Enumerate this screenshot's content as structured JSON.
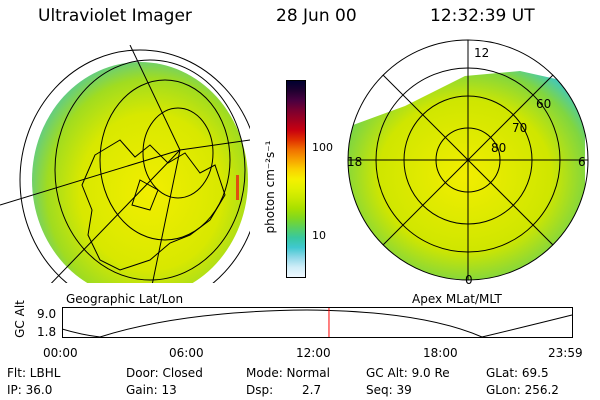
{
  "header": {
    "title": "Ultraviolet Imager",
    "date": "28 Jun 00",
    "time": "12:32:39 UT"
  },
  "left_panel": {
    "caption": "Geographic Lat/Lon"
  },
  "right_panel": {
    "caption": "Apex MLat/MLT",
    "mlt_labels": {
      "top": "12",
      "left": "18",
      "right": "6",
      "bottom": "0"
    },
    "lat_labels": [
      "60",
      "70",
      "80"
    ]
  },
  "colorbar": {
    "unit_label": "photon cm⁻²s⁻¹",
    "tick_labels": [
      "100",
      "10"
    ],
    "colors": [
      "#000030",
      "#200030",
      "#4a0040",
      "#7a0030",
      "#a00020",
      "#c80010",
      "#e03000",
      "#f07000",
      "#f7a000",
      "#fad000",
      "#f5f000",
      "#e0f000",
      "#c8e800",
      "#a8e000",
      "#80d820",
      "#58d060",
      "#38c8a0",
      "#40c8d0",
      "#90d8e8",
      "#d0eef8",
      "#f0f8ff"
    ]
  },
  "timeline": {
    "axis_label": "GC Alt",
    "y_ticks": [
      "9.0",
      "1.8"
    ],
    "x_ticks": [
      "00:00",
      "06:00",
      "12:00",
      "18:00",
      "23:59"
    ],
    "current_marker_hour": 12.54,
    "accent": "#ff0000"
  },
  "info": {
    "flt": "Flt: LBHL",
    "ip": "IP: 36.0",
    "door": "Door: Closed",
    "gain": "Gain: 13",
    "mode": "Mode: Normal",
    "dsp_label": "Dsp:",
    "dsp_value": "2.7",
    "gcalt": "GC Alt: 9.0 Re",
    "seq": "Seq: 39",
    "glat": "GLat:  69.5",
    "glon": "GLon: 256.2"
  }
}
